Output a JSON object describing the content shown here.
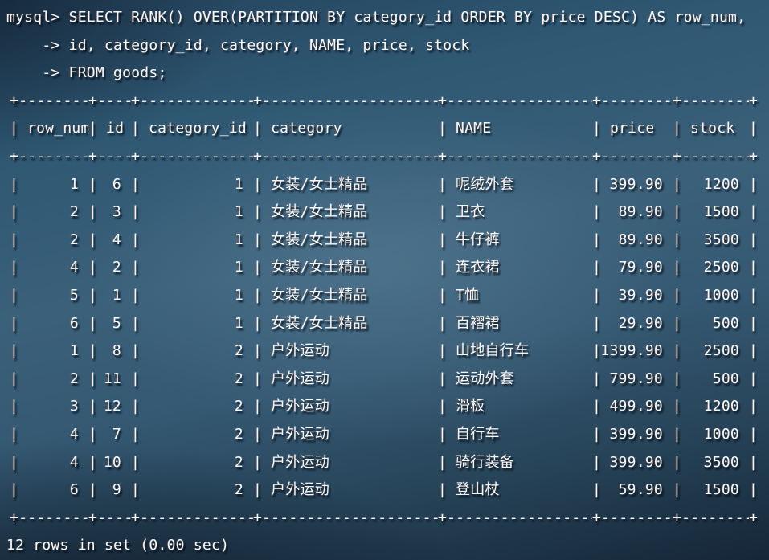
{
  "terminal": {
    "prompt_lines": [
      "mysql> SELECT RANK() OVER(PARTITION BY category_id ORDER BY price DESC) AS row_num,",
      "    -> id, category_id, category, NAME, price, stock",
      "    -> FROM goods;"
    ],
    "status": "12 rows in set (0.00 sec)"
  },
  "result_table": {
    "columns": [
      {
        "label": "row_num",
        "align": "right"
      },
      {
        "label": "id",
        "align": "right"
      },
      {
        "label": "category_id",
        "align": "right"
      },
      {
        "label": "category",
        "align": "left"
      },
      {
        "label": "NAME",
        "align": "left"
      },
      {
        "label": "price",
        "align": "right"
      },
      {
        "label": "stock",
        "align": "right"
      }
    ],
    "rows": [
      [
        "1",
        "6",
        "1",
        "女装/女士精品",
        "呢绒外套",
        "399.90",
        "1200"
      ],
      [
        "2",
        "3",
        "1",
        "女装/女士精品",
        "卫衣",
        "89.90",
        "1500"
      ],
      [
        "2",
        "4",
        "1",
        "女装/女士精品",
        "牛仔裤",
        "89.90",
        "3500"
      ],
      [
        "4",
        "2",
        "1",
        "女装/女士精品",
        "连衣裙",
        "79.90",
        "2500"
      ],
      [
        "5",
        "1",
        "1",
        "女装/女士精品",
        "T恤",
        "39.90",
        "1000"
      ],
      [
        "6",
        "5",
        "1",
        "女装/女士精品",
        "百褶裙",
        "29.90",
        "500"
      ],
      [
        "1",
        "8",
        "2",
        "户外运动",
        "山地自行车",
        "1399.90",
        "2500"
      ],
      [
        "2",
        "11",
        "2",
        "户外运动",
        "运动外套",
        "799.90",
        "500"
      ],
      [
        "3",
        "12",
        "2",
        "户外运动",
        "滑板",
        "499.90",
        "1200"
      ],
      [
        "4",
        "7",
        "2",
        "户外运动",
        "自行车",
        "399.90",
        "1000"
      ],
      [
        "4",
        "10",
        "2",
        "户外运动",
        "骑行装备",
        "399.90",
        "3500"
      ],
      [
        "6",
        "9",
        "2",
        "户外运动",
        "登山杖",
        "59.90",
        "1500"
      ]
    ]
  },
  "colors": {
    "background_center": "#41637b",
    "background_edge": "#152637",
    "text": "#f4f7f9"
  }
}
